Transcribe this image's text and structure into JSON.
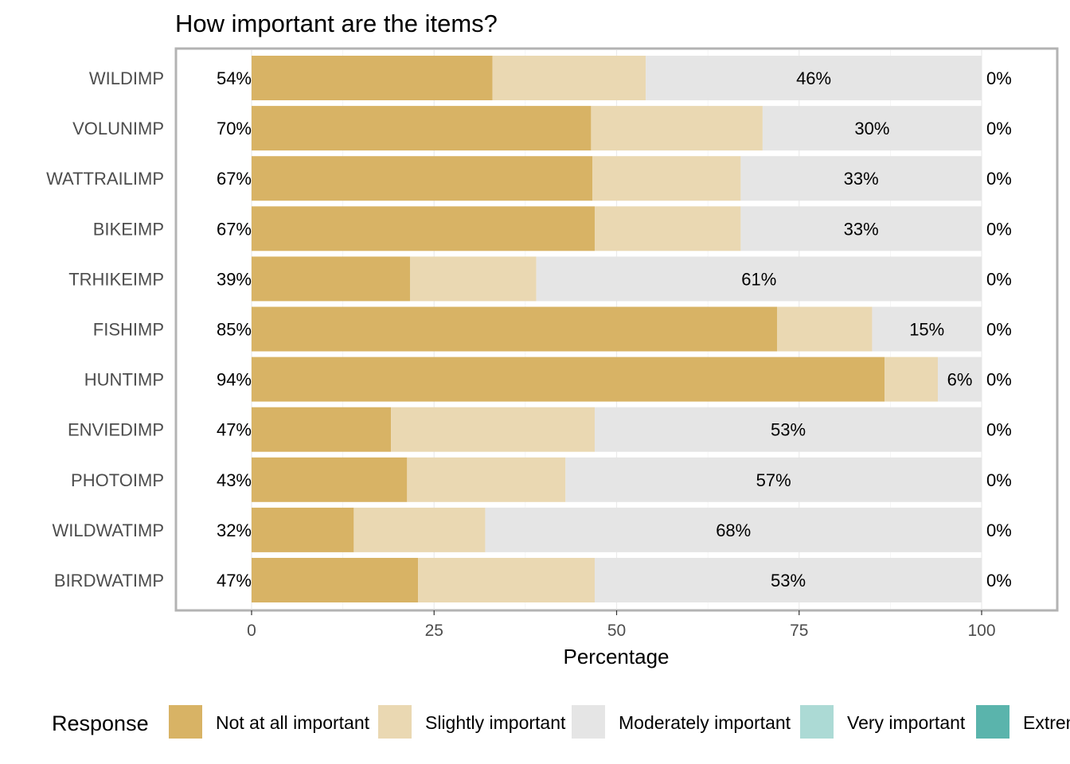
{
  "chart_data": {
    "type": "bar",
    "orientation": "horizontal",
    "stacked": true,
    "title": "How important are the items?",
    "xlabel": "Percentage",
    "ylabel": "",
    "xlim": [
      0,
      100
    ],
    "xticks": [
      0,
      25,
      50,
      75,
      100
    ],
    "xtick_labels": [
      "0",
      "25",
      "50",
      "75",
      "100"
    ],
    "grid": true,
    "legend_title": "Response",
    "legend_position": "bottom",
    "categories": [
      "WILDIMP",
      "VOLUNIMP",
      "WATTRAILIMP",
      "BIKEIMP",
      "TRHIKEIMP",
      "FISHIMP",
      "HUNTIMP",
      "ENVIEDIMP",
      "PHOTOIMP",
      "WILDWATIMP",
      "BIRDWATIMP"
    ],
    "series": [
      {
        "name": "Not at all important",
        "color": "#D8B365",
        "values": [
          33,
          46.5,
          46.7,
          47,
          21.7,
          72,
          86.7,
          19.1,
          21.3,
          14,
          22.8
        ]
      },
      {
        "name": "Slightly important",
        "color": "#EAD8B2",
        "values": [
          21,
          23.5,
          20.3,
          20,
          17.3,
          13,
          7.3,
          27.9,
          21.7,
          18,
          24.2
        ]
      },
      {
        "name": "Moderately important",
        "color": "#E5E5E5",
        "values": [
          46,
          30,
          33,
          33,
          61,
          15,
          6,
          53,
          57,
          68,
          53
        ]
      },
      {
        "name": "Very important",
        "color": "#ACDAD5",
        "values": [
          0,
          0,
          0,
          0,
          0,
          0,
          0,
          0,
          0,
          0,
          0
        ]
      },
      {
        "name": "Extremely important",
        "color": "#5AB4AC",
        "values": [
          0,
          0,
          0,
          0,
          0,
          0,
          0,
          0,
          0,
          0,
          0
        ]
      }
    ],
    "left_labels": [
      "54%",
      "70%",
      "67%",
      "67%",
      "39%",
      "85%",
      "94%",
      "47%",
      "43%",
      "32%",
      "47%"
    ],
    "center_labels": [
      "46%",
      "30%",
      "33%",
      "33%",
      "61%",
      "15%",
      "6%",
      "53%",
      "57%",
      "68%",
      "53%"
    ],
    "right_labels": [
      "0%",
      "0%",
      "0%",
      "0%",
      "0%",
      "0%",
      "0%",
      "0%",
      "0%",
      "0%",
      "0%"
    ]
  }
}
